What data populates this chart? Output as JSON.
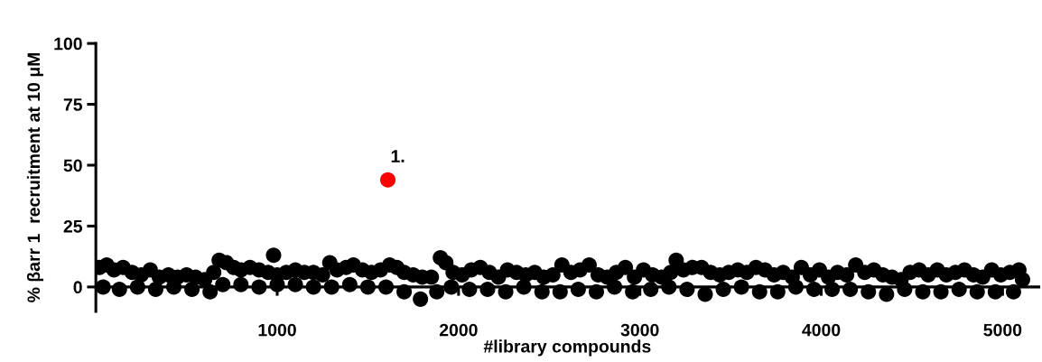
{
  "chart_data": {
    "type": "scatter",
    "ylabel": "% βarr 1  recruitment at 10 μM",
    "xlabel": "#library compounds",
    "xlim": [
      0,
      5200
    ],
    "xticks": [
      1000,
      2000,
      3000,
      4000,
      5000
    ],
    "ylim": [
      -10,
      100
    ],
    "yticks": [
      0,
      25,
      50,
      75,
      100
    ],
    "grid": false,
    "legend": false,
    "marker": "circle",
    "annotations": [
      {
        "text": "1.",
        "x": 1610,
        "y": 44
      }
    ],
    "series": [
      {
        "color": "#000000",
        "x": [
          20,
          60,
          100,
          150,
          200,
          250,
          300,
          350,
          400,
          450,
          500,
          550,
          600,
          650,
          680,
          720,
          760,
          800,
          850,
          900,
          950,
          980,
          1000,
          1050,
          1100,
          1150,
          1200,
          1250,
          1290,
          1330,
          1380,
          1420,
          1470,
          1520,
          1570,
          1620,
          1660,
          1700,
          1750,
          1800,
          1850,
          1900,
          1930,
          1970,
          2020,
          2070,
          2120,
          2170,
          2220,
          2270,
          2320,
          2370,
          2420,
          2470,
          2520,
          2570,
          2620,
          2670,
          2720,
          2770,
          2820,
          2870,
          2920,
          2970,
          3020,
          3070,
          3120,
          3170,
          3200,
          3240,
          3290,
          3340,
          3390,
          3440,
          3490,
          3540,
          3590,
          3640,
          3690,
          3740,
          3790,
          3840,
          3890,
          3940,
          3990,
          4040,
          4090,
          4140,
          4190,
          4240,
          4290,
          4340,
          4390,
          4440,
          4490,
          4540,
          4590,
          4640,
          4690,
          4740,
          4790,
          4840,
          4890,
          4940,
          4990,
          5040,
          5090,
          5110,
          40,
          130,
          230,
          330,
          430,
          530,
          630,
          700,
          800,
          900,
          1000,
          1100,
          1200,
          1300,
          1400,
          1500,
          1600,
          1700,
          1790,
          1880,
          1960,
          2060,
          2160,
          2260,
          2360,
          2460,
          2560,
          2660,
          2760,
          2860,
          2960,
          3060,
          3160,
          3260,
          3360,
          3460,
          3560,
          3660,
          3760,
          3860,
          3960,
          4060,
          4160,
          4260,
          4360,
          4460,
          4560,
          4660,
          4760,
          4860,
          4960,
          5060
        ],
        "values": [
          8,
          9,
          7,
          8,
          6,
          5,
          7,
          4,
          5,
          4,
          5,
          4,
          3,
          6,
          11,
          10,
          8,
          7,
          8,
          7,
          6,
          13,
          5,
          6,
          7,
          6,
          6,
          5,
          10,
          7,
          8,
          9,
          7,
          6,
          7,
          9,
          8,
          6,
          5,
          4,
          4,
          12,
          10,
          6,
          5,
          7,
          8,
          6,
          4,
          7,
          6,
          5,
          6,
          4,
          5,
          9,
          6,
          7,
          9,
          5,
          4,
          6,
          8,
          4,
          7,
          5,
          4,
          6,
          11,
          7,
          8,
          8,
          6,
          5,
          6,
          7,
          6,
          8,
          7,
          5,
          6,
          4,
          8,
          5,
          7,
          4,
          6,
          5,
          9,
          6,
          7,
          5,
          4,
          3,
          6,
          7,
          5,
          7,
          5,
          6,
          7,
          5,
          4,
          7,
          5,
          6,
          7,
          3,
          0,
          -1,
          0,
          -1,
          0,
          -1,
          -2,
          1,
          1,
          0,
          1,
          1,
          0,
          0,
          1,
          0,
          0,
          -2,
          -5,
          -2,
          0,
          -1,
          -1,
          -2,
          0,
          -2,
          -2,
          -1,
          -2,
          0,
          -2,
          -1,
          0,
          -1,
          -3,
          -1,
          0,
          -2,
          -2,
          0,
          -1,
          -1,
          -1,
          -2,
          -3,
          -1,
          -2,
          -2,
          -1,
          -2,
          -2,
          -2
        ]
      },
      {
        "color": "#ff0000",
        "x": [
          1610
        ],
        "values": [
          44
        ]
      }
    ]
  }
}
